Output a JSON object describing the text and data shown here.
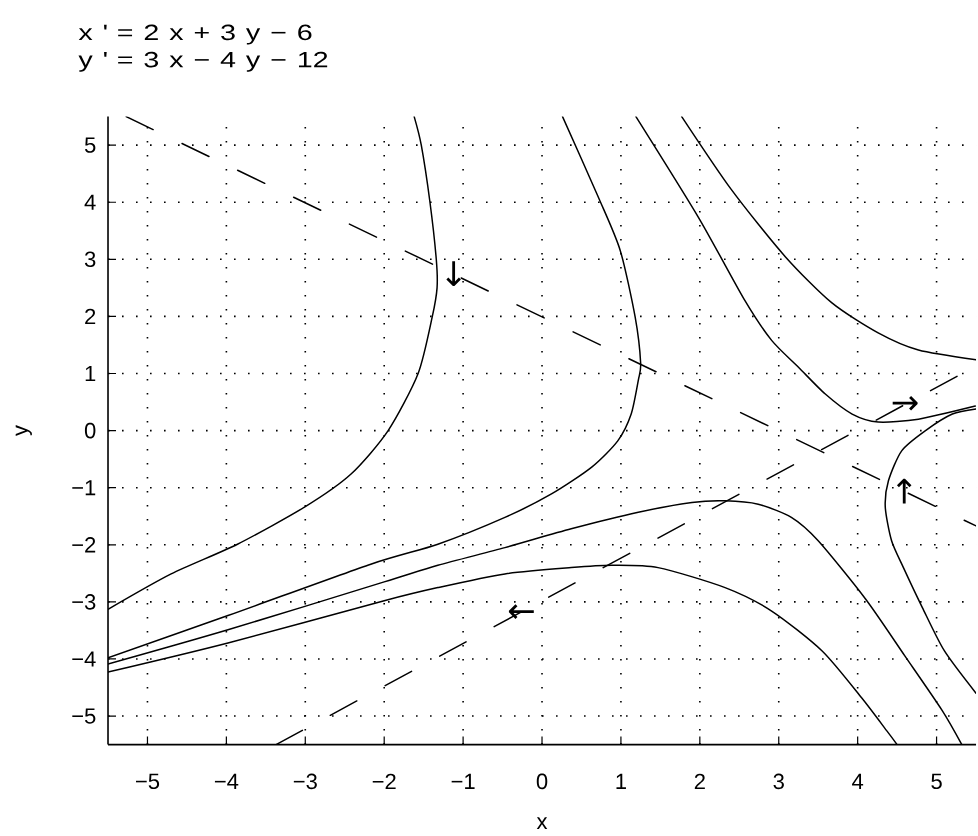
{
  "chart_data": {
    "type": "line",
    "title": "x ' = 2 x + 3 y − 6",
    "subtitle": "y ' = 3 x − 4 y − 12",
    "xlabel": "x",
    "ylabel": "y",
    "xlim": [
      -5.5,
      5.5
    ],
    "ylim": [
      -5.5,
      5.5
    ],
    "xticks": [
      {
        "value": -5,
        "label": "−5"
      },
      {
        "value": -4,
        "label": "−4"
      },
      {
        "value": -3,
        "label": "−3"
      },
      {
        "value": -2,
        "label": "−2"
      },
      {
        "value": -1,
        "label": "−1"
      },
      0,
      1,
      2,
      3,
      4,
      5
    ],
    "yticks": [
      {
        "value": -5,
        "label": "−5"
      },
      {
        "value": -4,
        "label": "−4"
      },
      {
        "value": -3,
        "label": "−3"
      },
      {
        "value": -2,
        "label": "−2"
      },
      {
        "value": -1,
        "label": "−1"
      },
      0,
      1,
      2,
      3,
      4,
      5
    ],
    "grid": true,
    "line_style": "solid",
    "series": [
      {
        "color": "#000000",
        "x": [
          -1.62,
          -1.53,
          -1.42,
          -1.34,
          -1.33,
          -1.39,
          -1.57,
          -1.95,
          -2.42,
          -3.01,
          -3.86,
          -4.7,
          -5.5
        ],
        "values": [
          5.5,
          5.0,
          4.0,
          3.0,
          2.5,
          2.0,
          1.0,
          0.0,
          -0.76,
          -1.34,
          -1.99,
          -2.51,
          -3.13
        ]
      },
      {
        "color": "#000000",
        "x": [
          0.26,
          0.71,
          0.99,
          1.18,
          1.25,
          1.22,
          1.13,
          0.96,
          0.63,
          0.12,
          -0.47,
          -1.32,
          -2.17,
          -3.98,
          -5.5
        ],
        "values": [
          5.5,
          4.1,
          3.16,
          1.99,
          1.18,
          0.88,
          0.29,
          -0.18,
          -0.64,
          -1.11,
          -1.52,
          -1.99,
          -2.34,
          -3.24,
          -3.98
        ]
      },
      {
        "color": "#000000",
        "x": [
          -5.5,
          -3.98,
          -2.0,
          -1.32,
          -0.47,
          0.37,
          1.22,
          1.9,
          2.32,
          2.74,
          3.16,
          3.5,
          4.1,
          4.6,
          5.07,
          5.32
        ],
        "values": [
          -4.09,
          -3.49,
          -2.65,
          -2.36,
          -2.05,
          -1.72,
          -1.43,
          -1.26,
          -1.23,
          -1.29,
          -1.52,
          -1.93,
          -2.95,
          -3.95,
          -4.9,
          -5.5
        ]
      },
      {
        "color": "#000000",
        "x": [
          -5.5,
          -3.98,
          -2.0,
          -1.32,
          -0.47,
          0.37,
          0.88,
          1.47,
          2.32,
          2.91,
          3.55,
          4.05,
          4.37,
          4.5
        ],
        "values": [
          -4.23,
          -3.72,
          -2.98,
          -2.75,
          -2.51,
          -2.4,
          -2.36,
          -2.4,
          -2.75,
          -3.16,
          -3.86,
          -4.68,
          -5.26,
          -5.5
        ]
      },
      {
        "color": "#000000",
        "x": [
          5.5,
          5.2,
          4.86,
          4.56,
          4.39,
          4.35,
          4.43,
          4.58,
          4.82,
          5.1,
          5.5
        ],
        "values": [
          0.38,
          0.29,
          0.0,
          -0.35,
          -0.88,
          -1.34,
          -1.93,
          -2.4,
          -3.1,
          -3.86,
          -4.6
        ]
      },
      {
        "color": "#000000",
        "x": [
          1.19,
          1.98,
          2.57,
          2.91,
          3.25,
          3.59,
          3.93,
          4.26,
          4.77,
          5.49
        ],
        "values": [
          5.5,
          3.74,
          2.28,
          1.58,
          1.11,
          0.64,
          0.29,
          0.15,
          0.2,
          0.43
        ]
      },
      {
        "color": "#000000",
        "x": [
          1.77,
          2.4,
          3.08,
          3.67,
          4.26,
          4.77,
          5.5
        ],
        "values": [
          5.5,
          4.22,
          3.05,
          2.24,
          1.71,
          1.41,
          1.24
        ]
      },
      {
        "color": "#000000",
        "line_style": "dashed",
        "x": [
          -5.27,
          5.5
        ],
        "values": [
          5.5,
          -1.67
        ]
      },
      {
        "color": "#000000",
        "line_style": "dashed",
        "x": [
          -3.37,
          5.5
        ],
        "values": [
          -5.5,
          1.13
        ]
      }
    ],
    "annotations": [
      {
        "text": "↓",
        "x": -1.12,
        "y": 2.75
      },
      {
        "text": "←",
        "x": -0.26,
        "y": -3.2
      },
      {
        "text": "→",
        "x": 4.6,
        "y": 0.45
      },
      {
        "text": "↑",
        "x": 4.59,
        "y": -1.06
      }
    ]
  }
}
